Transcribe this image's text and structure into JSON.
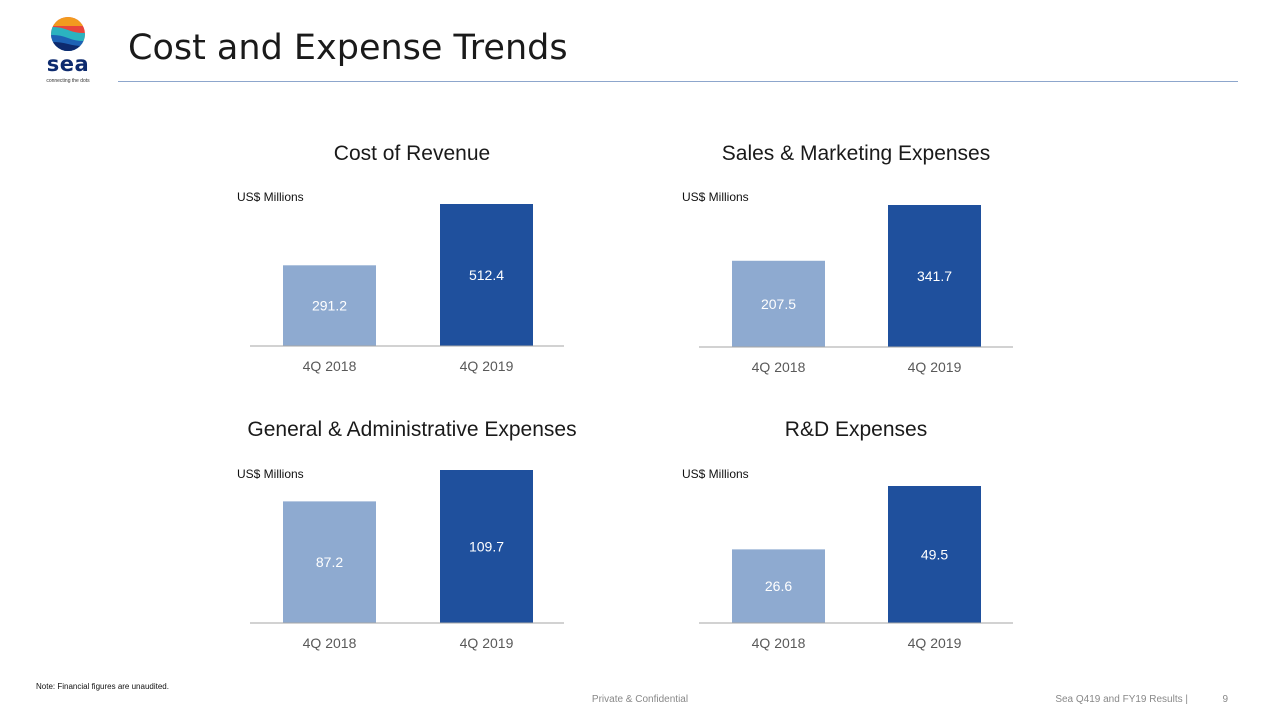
{
  "header": {
    "title": "Cost and Expense Trends",
    "logo_word": "sea",
    "logo_tagline": "connecting the dots"
  },
  "colors": {
    "bar_prior": "#8eaad0",
    "bar_current": "#1f509d",
    "axis": "#a6a6a6",
    "rule": "#8da6cc"
  },
  "chart_data": [
    {
      "type": "bar",
      "title": "Cost of Revenue",
      "unit_label": "US$ Millions",
      "categories": [
        "4Q 2018",
        "4Q 2019"
      ],
      "values": [
        291.2,
        512.4
      ],
      "value_labels": [
        "291.2",
        "512.4"
      ],
      "ylim": [
        0,
        512.4
      ]
    },
    {
      "type": "bar",
      "title": "Sales & Marketing Expenses",
      "unit_label": "US$ Millions",
      "categories": [
        "4Q 2018",
        "4Q 2019"
      ],
      "values": [
        207.5,
        341.7
      ],
      "value_labels": [
        "207.5",
        "341.7"
      ],
      "ylim": [
        0,
        341.7
      ]
    },
    {
      "type": "bar",
      "title": "General & Administrative Expenses",
      "unit_label": "US$ Millions",
      "categories": [
        "4Q 2018",
        "4Q 2019"
      ],
      "values": [
        87.2,
        109.7
      ],
      "value_labels": [
        "87.2",
        "109.7"
      ],
      "ylim": [
        0,
        109.7
      ]
    },
    {
      "type": "bar",
      "title": "R&D Expenses",
      "unit_label": "US$ Millions",
      "categories": [
        "4Q 2018",
        "4Q 2019"
      ],
      "values": [
        26.6,
        49.5
      ],
      "value_labels": [
        "26.6",
        "49.5"
      ],
      "ylim": [
        0,
        60
      ]
    }
  ],
  "footer": {
    "note": "Note: Financial figures are unaudited.",
    "center": "Private & Confidential",
    "right": "Sea Q419 and FY19 Results |",
    "page": "9"
  }
}
